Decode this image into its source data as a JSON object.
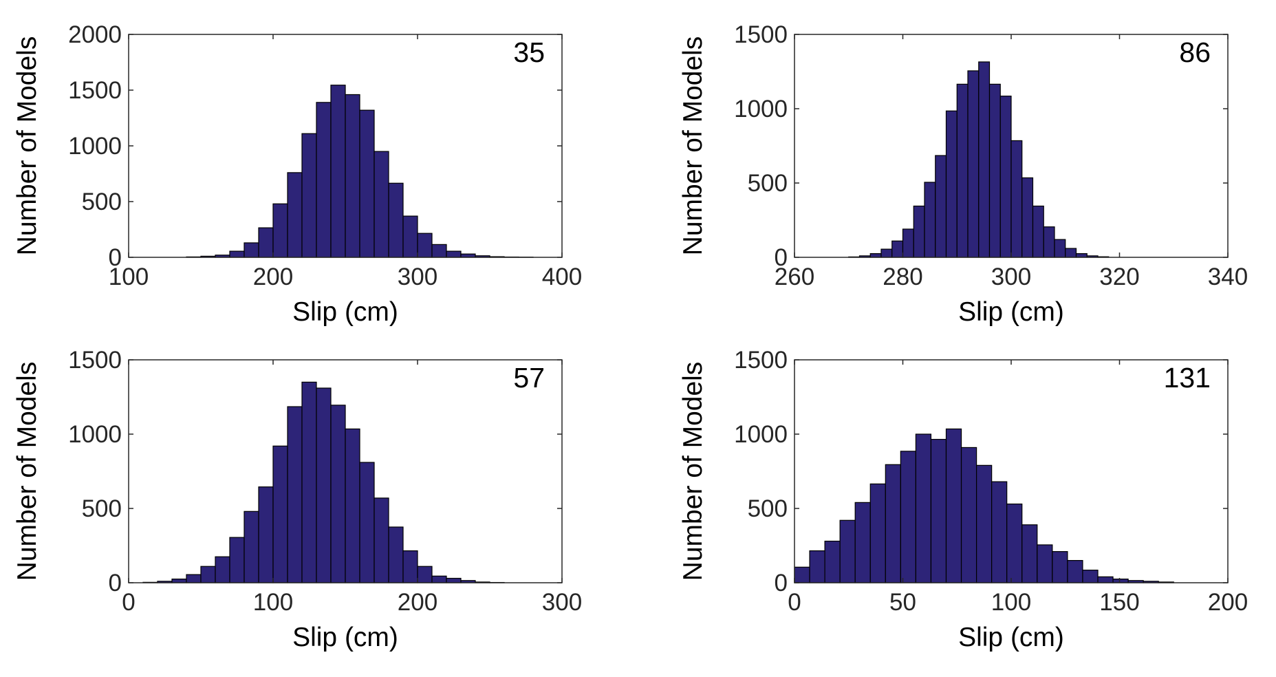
{
  "chart_data": [
    {
      "type": "bar",
      "annotation": "35",
      "xlabel": "Slip (cm)",
      "ylabel": "Number of Models",
      "xlim": [
        100,
        400
      ],
      "ylim": [
        0,
        2000
      ],
      "xticks": [
        100,
        200,
        300,
        400
      ],
      "yticks": [
        0,
        500,
        1000,
        1500,
        2000
      ],
      "bin_start": 140,
      "bin_width": 10,
      "values": [
        4,
        10,
        20,
        55,
        130,
        265,
        480,
        760,
        1110,
        1390,
        1545,
        1460,
        1320,
        950,
        665,
        370,
        215,
        115,
        55,
        30,
        14,
        6,
        3,
        2
      ]
    },
    {
      "type": "bar",
      "annotation": "86",
      "xlabel": "Slip (cm)",
      "ylabel": "Number of Models",
      "xlim": [
        260,
        340
      ],
      "ylim": [
        0,
        1500
      ],
      "xticks": [
        260,
        280,
        300,
        320,
        340
      ],
      "yticks": [
        0,
        500,
        1000,
        1500
      ],
      "bin_start": 270,
      "bin_width": 2,
      "values": [
        3,
        10,
        25,
        55,
        110,
        190,
        345,
        505,
        685,
        985,
        1165,
        1255,
        1315,
        1165,
        1085,
        785,
        535,
        345,
        205,
        120,
        60,
        25,
        10,
        4
      ]
    },
    {
      "type": "bar",
      "annotation": "57",
      "xlabel": "Slip (cm)",
      "ylabel": "Number of Models",
      "xlim": [
        0,
        300
      ],
      "ylim": [
        0,
        1500
      ],
      "xticks": [
        0,
        100,
        200,
        300
      ],
      "yticks": [
        0,
        500,
        1000,
        1500
      ],
      "bin_start": 10,
      "bin_width": 10,
      "values": [
        3,
        10,
        25,
        55,
        110,
        175,
        305,
        480,
        645,
        920,
        1185,
        1350,
        1310,
        1195,
        1035,
        810,
        570,
        375,
        215,
        110,
        45,
        30,
        15,
        5,
        2
      ]
    },
    {
      "type": "bar",
      "annotation": "131",
      "xlabel": "Slip (cm)",
      "ylabel": "Number of Models",
      "xlim": [
        0,
        200
      ],
      "ylim": [
        0,
        1500
      ],
      "xticks": [
        0,
        50,
        100,
        150,
        200
      ],
      "yticks": [
        0,
        500,
        1000,
        1500
      ],
      "bin_start": 0,
      "bin_width": 7,
      "values": [
        105,
        215,
        280,
        420,
        540,
        665,
        795,
        885,
        1000,
        965,
        1035,
        910,
        790,
        680,
        530,
        390,
        255,
        210,
        150,
        85,
        40,
        25,
        15,
        10,
        5
      ]
    }
  ]
}
